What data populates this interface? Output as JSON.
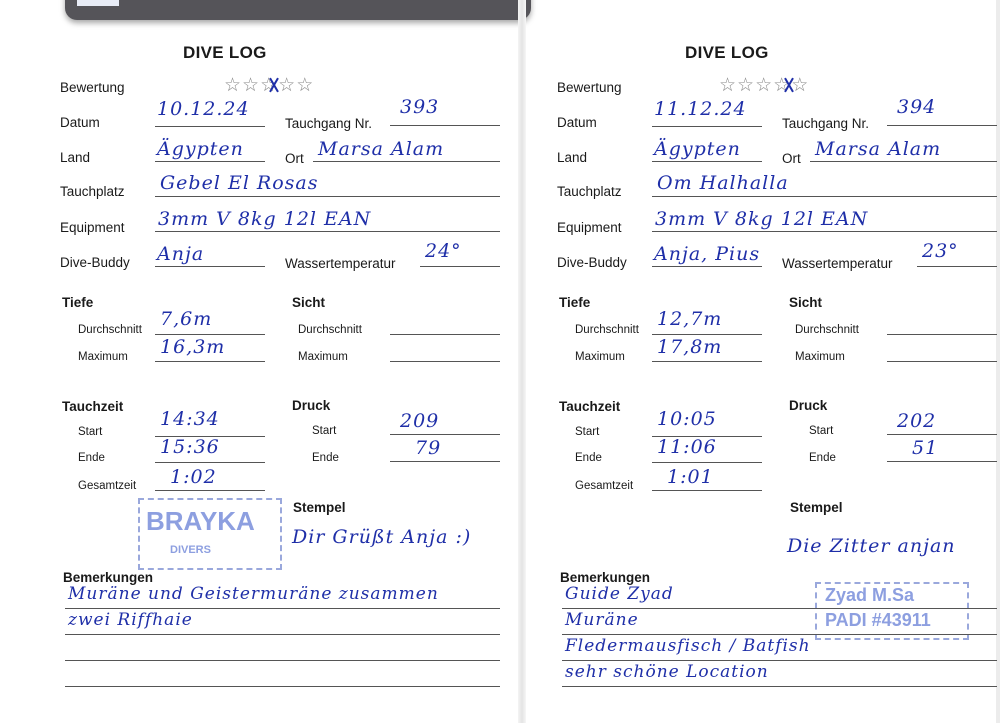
{
  "viewer": {
    "toolbar_icon": "page-thumbnail-icon"
  },
  "colors": {
    "ink": "#1f2fa8",
    "stamp": "#8d9fe0",
    "toolbar": "#555459"
  },
  "labels": {
    "title": "DIVE LOG",
    "rating": "Bewertung",
    "date": "Datum",
    "dive_no": "Tauchgang Nr.",
    "country": "Land",
    "place": "Ort",
    "site": "Tauchplatz",
    "equipment": "Equipment",
    "buddy": "Dive-Buddy",
    "water_temp": "Wassertemperatur",
    "depth": "Tiefe",
    "average": "Durchschnitt",
    "maximum": "Maximum",
    "visibility": "Sicht",
    "dive_time": "Tauchzeit",
    "start": "Start",
    "end": "Ende",
    "total": "Gesamtzeit",
    "pressure": "Druck",
    "stamp": "Stempel",
    "remarks": "Bemerkungen"
  },
  "pages": [
    {
      "rating": 3,
      "rating_max": 5,
      "date": "10.12.24",
      "dive_no": "393",
      "country": "Ägypten",
      "place": "Marsa Alam",
      "site": "Gebel El Rosas",
      "equipment": "3mm V   8kg  12l  EAN",
      "buddy": "Anja",
      "water_temp": "24°",
      "depth_avg": "7,6m",
      "depth_max": "16,3m",
      "vis_avg": "",
      "vis_max": "",
      "time_start": "14:34",
      "time_end": "15:36",
      "time_total": "1:02",
      "pressure_start": "209",
      "pressure_end": "79",
      "stamp_note": "Dir Grüßt Anja :)",
      "stamp_text": "BRAYKA",
      "stamp_sub": "DIVERS",
      "remarks": [
        "Muräne und Geistermuräne zusammen",
        "zwei Riffhaie",
        "",
        ""
      ]
    },
    {
      "rating": 4,
      "rating_max": 5,
      "date": "11.12.24",
      "dive_no": "394",
      "country": "Ägypten",
      "place": "Marsa Alam",
      "site": "Om Halhalla",
      "equipment": "3mm V   8kg  12l  EAN",
      "buddy": "Anja, Pius",
      "water_temp": "23°",
      "depth_avg": "12,7m",
      "depth_max": "17,8m",
      "vis_avg": "",
      "vis_max": "",
      "time_start": "10:05",
      "time_end": "11:06",
      "time_total": "1:01",
      "pressure_start": "202",
      "pressure_end": "51",
      "stamp_note": "Die Zitter anjan",
      "stamp_text": "Zyad M.Sa",
      "stamp_sub": "PADI #43911",
      "remarks": [
        "Guide Zyad",
        "Muräne",
        "Fledermausfisch / Batfish",
        "sehr schöne Location"
      ]
    }
  ]
}
